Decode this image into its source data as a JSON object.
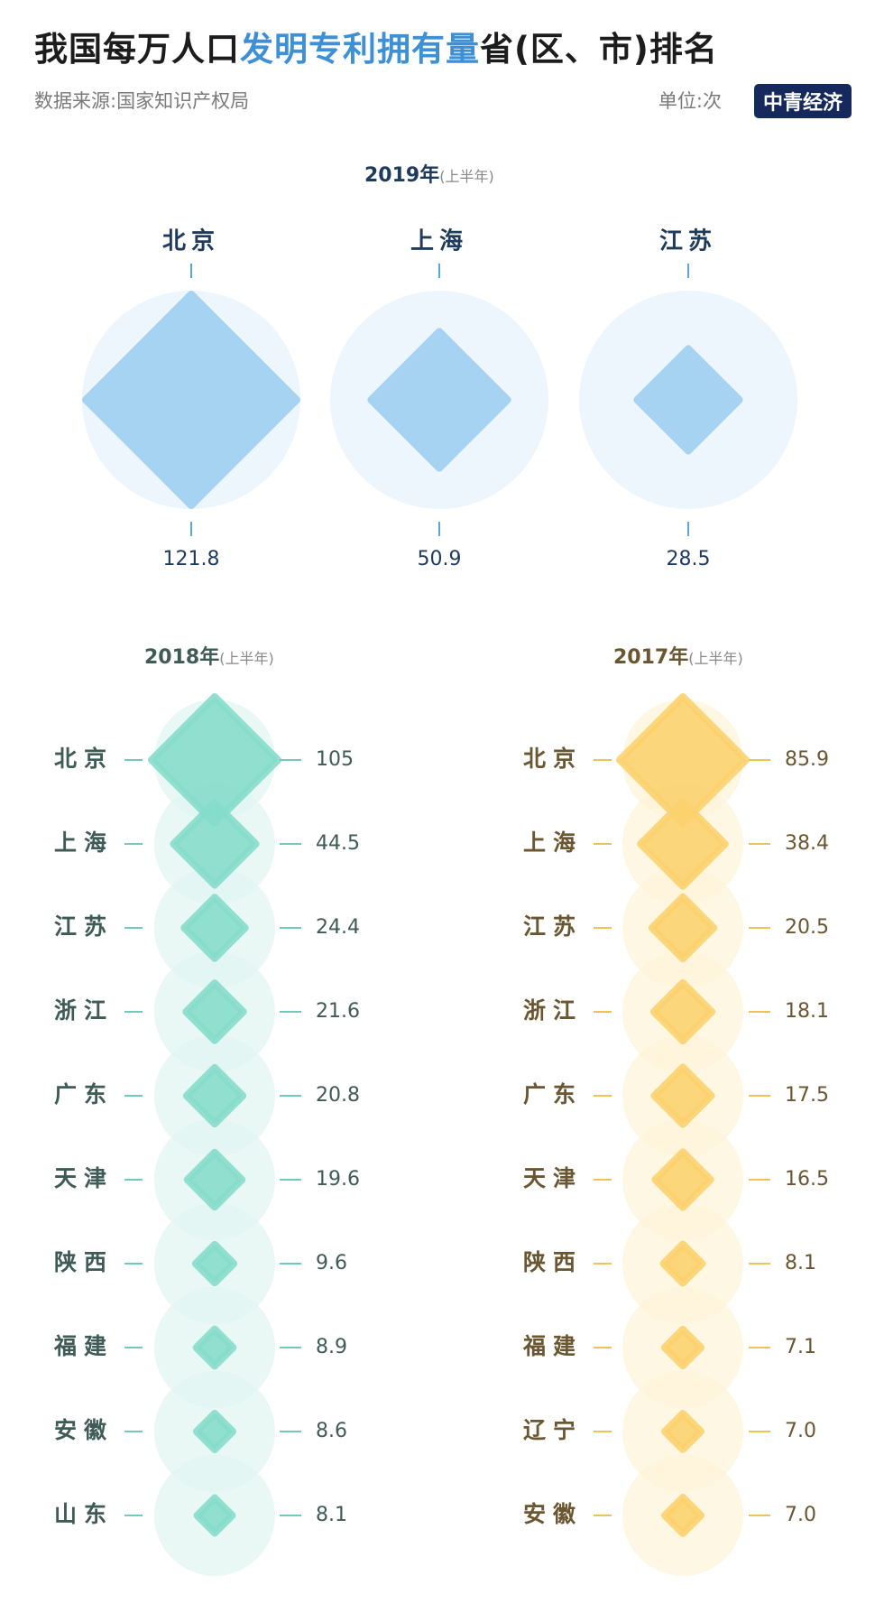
{
  "header": {
    "title_a": "我国每万人口",
    "title_b": "发明专利拥有量",
    "title_c": "省(区、市)排名",
    "source": "数据来源:国家知识产权局",
    "unit": "单位:次",
    "logo": "中青经济"
  },
  "colors": {
    "p2019_fill": "#a6d3f2",
    "p2019_bg": "#eef6fd",
    "p2019_text": "#1f3b5c",
    "p2018_fill": "#86dccb",
    "p2018_bg": "#e2f6f1",
    "p2018_text": "#3f5b55",
    "p2017_fill": "#fcd26f",
    "p2017_bg": "#fef4d9",
    "p2017_text": "#6a5630"
  },
  "chart_data": [
    {
      "type": "bubble-diamond",
      "title": "2019年",
      "subtitle": "(上半年)",
      "categories": [
        "北京",
        "上海",
        "江苏"
      ],
      "values": [
        121.8,
        50.9,
        28.5
      ],
      "value_labels": [
        "121.8",
        "50.9",
        "28.5"
      ]
    },
    {
      "type": "bubble-diamond",
      "title": "2018年",
      "subtitle": "(上半年)",
      "categories": [
        "北京",
        "上海",
        "江苏",
        "浙江",
        "广东",
        "天津",
        "陕西",
        "福建",
        "安徽",
        "山东"
      ],
      "values": [
        105,
        44.5,
        24.4,
        21.6,
        20.8,
        19.6,
        9.6,
        8.9,
        8.6,
        8.1
      ],
      "value_labels": [
        "105",
        "44.5",
        "24.4",
        "21.6",
        "20.8",
        "19.6",
        "9.6",
        "8.9",
        "8.6",
        "8.1"
      ]
    },
    {
      "type": "bubble-diamond",
      "title": "2017年",
      "subtitle": "(上半年)",
      "categories": [
        "北京",
        "上海",
        "江苏",
        "浙江",
        "广东",
        "天津",
        "陕西",
        "福建",
        "辽宁",
        "安徽"
      ],
      "values": [
        85.9,
        38.4,
        20.5,
        18.1,
        17.5,
        16.5,
        8.1,
        7.1,
        7.0,
        7.0
      ],
      "value_labels": [
        "85.9",
        "38.4",
        "20.5",
        "18.1",
        "17.5",
        "16.5",
        "8.1",
        "7.1",
        "7.0",
        "7.0"
      ]
    }
  ]
}
